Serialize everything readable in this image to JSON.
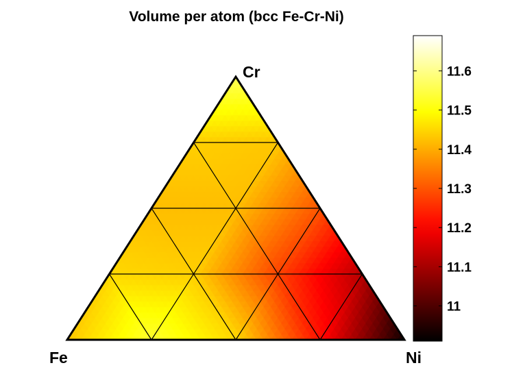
{
  "chart_data": {
    "type": "heatmap",
    "title": "Volume per atom (bcc Fe-Cr-Ni)",
    "vertices": {
      "bottom_left": "Fe",
      "bottom_right": "Ni",
      "top": "Cr"
    },
    "grid_divisions": 4,
    "colormap": "hot",
    "colorbar": {
      "range": [
        10.91,
        11.69
      ],
      "ticks": [
        11,
        11.1,
        11.2,
        11.3,
        11.4,
        11.5,
        11.6
      ],
      "tick_labels": [
        "11",
        "11.1",
        "11.2",
        "11.3",
        "11.4",
        "11.5",
        "11.6"
      ]
    },
    "composition_grid": {
      "columns": [
        "Cr",
        "Ni",
        "value"
      ],
      "rows": [
        [
          0,
          0,
          11.43
        ],
        [
          0,
          0.25,
          11.53
        ],
        [
          0,
          0.5,
          11.45
        ],
        [
          0,
          0.75,
          11.22
        ],
        [
          0,
          1,
          10.93
        ],
        [
          0.25,
          0,
          11.45
        ],
        [
          0.25,
          0.25,
          11.44
        ],
        [
          0.25,
          0.5,
          11.28
        ],
        [
          0.25,
          0.75,
          11.12
        ],
        [
          0.5,
          0,
          11.42
        ],
        [
          0.5,
          0.25,
          11.42
        ],
        [
          0.5,
          0.5,
          11.3
        ],
        [
          0.75,
          0,
          11.44
        ],
        [
          0.75,
          0.25,
          11.43
        ],
        [
          1,
          0,
          11.56
        ]
      ]
    }
  }
}
